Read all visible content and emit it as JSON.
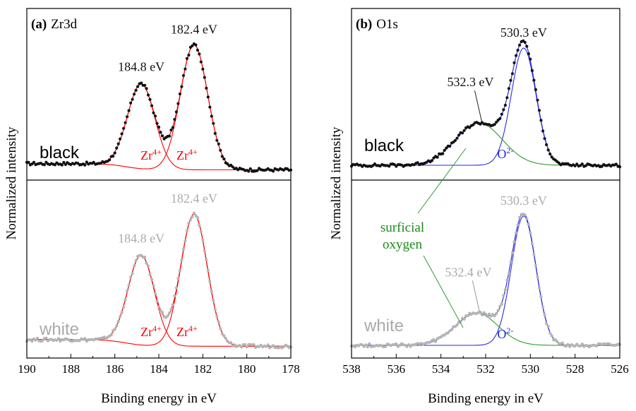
{
  "chart_data": [
    {
      "type": "line",
      "panel": "(a)",
      "element": "Zr3d",
      "xlabel": "Binding energy in eV",
      "ylabel": "Normalized  intensity",
      "xlim": [
        190,
        178
      ],
      "xticks": [
        190,
        188,
        186,
        184,
        182,
        180,
        178
      ],
      "x_reversed": true,
      "subpanels": [
        {
          "sample": "black",
          "sample_color": "#000000",
          "data_color": "#111111",
          "fit_color": "#ff0000",
          "peaks": [
            {
              "energy": 184.8,
              "height": 0.68,
              "sigma": 0.62,
              "label": "184.8 eV",
              "species": "Zr",
              "charge": "4+"
            },
            {
              "energy": 182.4,
              "height": 1.0,
              "sigma": 0.62,
              "label": "182.4 eV",
              "species": "Zr",
              "charge": "4+"
            }
          ]
        },
        {
          "sample": "white",
          "sample_color": "#aaaaaa",
          "data_color": "#b4b4b4",
          "fit_color": "#ff0000",
          "peaks": [
            {
              "energy": 184.8,
              "height": 0.68,
              "sigma": 0.6,
              "label": "184.8 eV",
              "species": "Zr",
              "charge": "4+"
            },
            {
              "energy": 182.4,
              "height": 1.0,
              "sigma": 0.6,
              "label": "182.4 eV",
              "species": "Zr",
              "charge": "4+"
            }
          ]
        }
      ]
    },
    {
      "type": "line",
      "panel": "(b)",
      "element": "O1s",
      "xlabel": "Binding energy in eV",
      "ylabel": "Normalized  intensity",
      "xlim": [
        538,
        526
      ],
      "xticks": [
        538,
        536,
        534,
        532,
        530,
        528,
        526
      ],
      "x_reversed": true,
      "annotation": {
        "text_line1": "surficial",
        "text_line2": "oxygen",
        "color": "#1a8a1a"
      },
      "subpanels": [
        {
          "sample": "black",
          "sample_color": "#000000",
          "data_color": "#111111",
          "peaks": [
            {
              "energy": 530.3,
              "height": 1.0,
              "sigma": 0.55,
              "label": "530.3 eV",
              "species": "O",
              "charge": "2-",
              "color": "#2a2ae0"
            },
            {
              "energy": 532.3,
              "height": 0.36,
              "sigma": 1.05,
              "label": "532.3 eV",
              "color": "#2e9b2e"
            }
          ]
        },
        {
          "sample": "white",
          "sample_color": "#aaaaaa",
          "data_color": "#b4b4b4",
          "peaks": [
            {
              "energy": 530.3,
              "height": 1.0,
              "sigma": 0.55,
              "label": "530.3 eV",
              "species": "O",
              "charge": "2-",
              "color": "#2a2ae0"
            },
            {
              "energy": 532.4,
              "height": 0.25,
              "sigma": 0.95,
              "label": "532.4 eV",
              "color": "#2e9b2e"
            }
          ]
        }
      ]
    }
  ]
}
